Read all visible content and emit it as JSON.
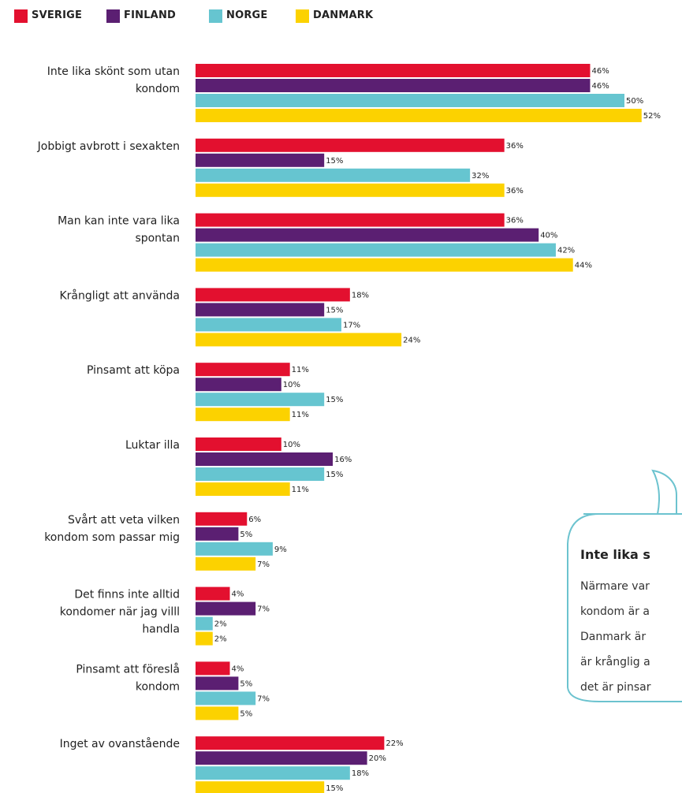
{
  "legend": [
    {
      "label": "SVERIGE",
      "color": "#e3102f"
    },
    {
      "label": "FINLAND",
      "color": "#5b1f72"
    },
    {
      "label": "NORGE",
      "color": "#66c5d0"
    },
    {
      "label": "DANMARK",
      "color": "#fcd200"
    }
  ],
  "chart_data": {
    "type": "bar",
    "orientation": "horizontal",
    "value_suffix": "%",
    "categories": [
      [
        "Inte lika skönt som utan",
        "kondom"
      ],
      [
        "Jobbigt avbrott i sexakten"
      ],
      [
        "Man kan inte vara lika",
        "spontan"
      ],
      [
        "Krångligt att använda"
      ],
      [
        "Pinsamt att köpa"
      ],
      [
        "Luktar illa"
      ],
      [
        "Svårt att veta vilken",
        "kondom som passar mig"
      ],
      [
        "Det finns inte alltid",
        "kondomer när jag villl",
        "handla"
      ],
      [
        "Pinsamt att föreslå",
        "kondom"
      ],
      [
        "Inget av ovanstående"
      ]
    ],
    "series": [
      {
        "name": "SVERIGE",
        "color": "#e3102f",
        "values": [
          46,
          36,
          36,
          18,
          11,
          10,
          6,
          4,
          4,
          22
        ]
      },
      {
        "name": "FINLAND",
        "color": "#5b1f72",
        "values": [
          46,
          15,
          40,
          15,
          10,
          16,
          5,
          7,
          5,
          20
        ]
      },
      {
        "name": "NORGE",
        "color": "#66c5d0",
        "values": [
          50,
          32,
          42,
          17,
          15,
          15,
          9,
          2,
          7,
          18
        ]
      },
      {
        "name": "DANMARK",
        "color": "#fcd200",
        "values": [
          52,
          36,
          44,
          24,
          11,
          11,
          7,
          2,
          5,
          15
        ]
      }
    ]
  },
  "callout": {
    "title": "Inte lika s",
    "lines": [
      "Närmare var",
      "kondom är a",
      "Danmark är",
      "är krånglig a",
      "det är pinsar"
    ]
  }
}
